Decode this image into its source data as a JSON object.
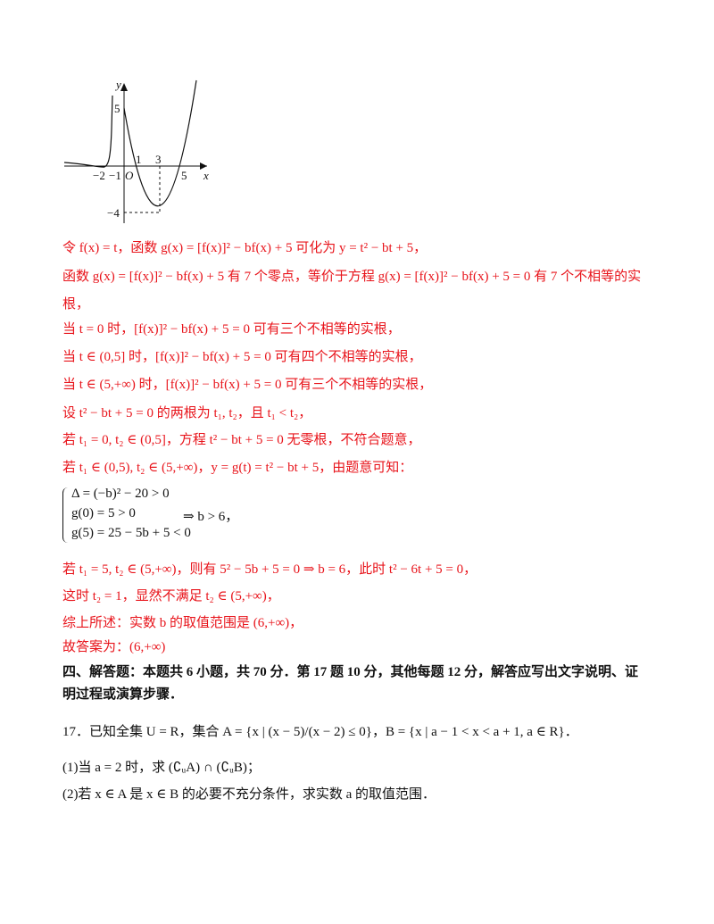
{
  "figure": {
    "axis_y": "y",
    "axis_x": "x",
    "origin": "O",
    "ticks": [
      "5",
      "−2",
      "−1",
      "1",
      "3",
      "5",
      "−4"
    ]
  },
  "solution": {
    "lines": [
      "令 f(x) = t，函数 g(x) = [f(x)]² − bf(x) + 5 可化为 y = t² − bt + 5，",
      "函数 g(x) = [f(x)]² − bf(x) + 5 有 7 个零点，等价于方程 g(x) = [f(x)]² − bf(x) + 5 = 0 有 7 个不相等的实",
      "根，",
      "当 t = 0 时，[f(x)]² − bf(x) + 5 = 0 可有三个不相等的实根，",
      "当 t ∈ (0,5] 时，[f(x)]² − bf(x) + 5 = 0 可有四个不相等的实根，",
      "当 t ∈ (5,+∞) 时，[f(x)]² − bf(x) + 5 = 0 可有三个不相等的实根，",
      "设 t² − bt + 5 = 0 的两根为 t₁, t₂，且 t₁ < t₂，",
      "若 t₁ = 0, t₂ ∈ (0,5]，方程 t² − bt + 5 = 0 无零根，不符合题意，",
      "若 t₁ ∈ (0,5), t₂ ∈ (5,+∞)，y = g(t) = t² − bt + 5，由题意可知："
    ],
    "system": [
      "Δ = (−b)² − 20 > 0",
      "g(0) = 5 > 0",
      "g(5) = 25 − 5b + 5 < 0"
    ],
    "system_result": "⇒ b > 6，",
    "lines_after": [
      "若 t₁ = 5, t₂ ∈ (5,+∞)，则有 5² − 5b + 5 = 0 ⇒ b = 6，此时 t² − 6t + 5 = 0，",
      "这时 t₂ = 1，显然不满足 t₂ ∈ (5,+∞)，",
      "综上所述：实数 b 的取值范围是 (6,+∞)，",
      "故答案为：(6,+∞)"
    ]
  },
  "section": {
    "lines": [
      "四、解答题：本题共 6 小题，共 70 分．第 17 题 10 分，其他每题 12 分，解答应写出文字说明、证",
      "明过程或演算步骤．"
    ]
  },
  "problem": {
    "lines": [
      "17．已知全集 U = R，集合 A = {x | (x − 5)/(x − 2) ≤ 0}，B = {x | a − 1 < x < a + 1, a ∈ R}．",
      "(1)当 a = 2 时，求 (∁ᵤA) ∩ (∁ᵤB)；",
      "(2)若 x ∈ A 是 x ∈ B 的必要不充分条件，求实数 a 的取值范围．"
    ]
  }
}
